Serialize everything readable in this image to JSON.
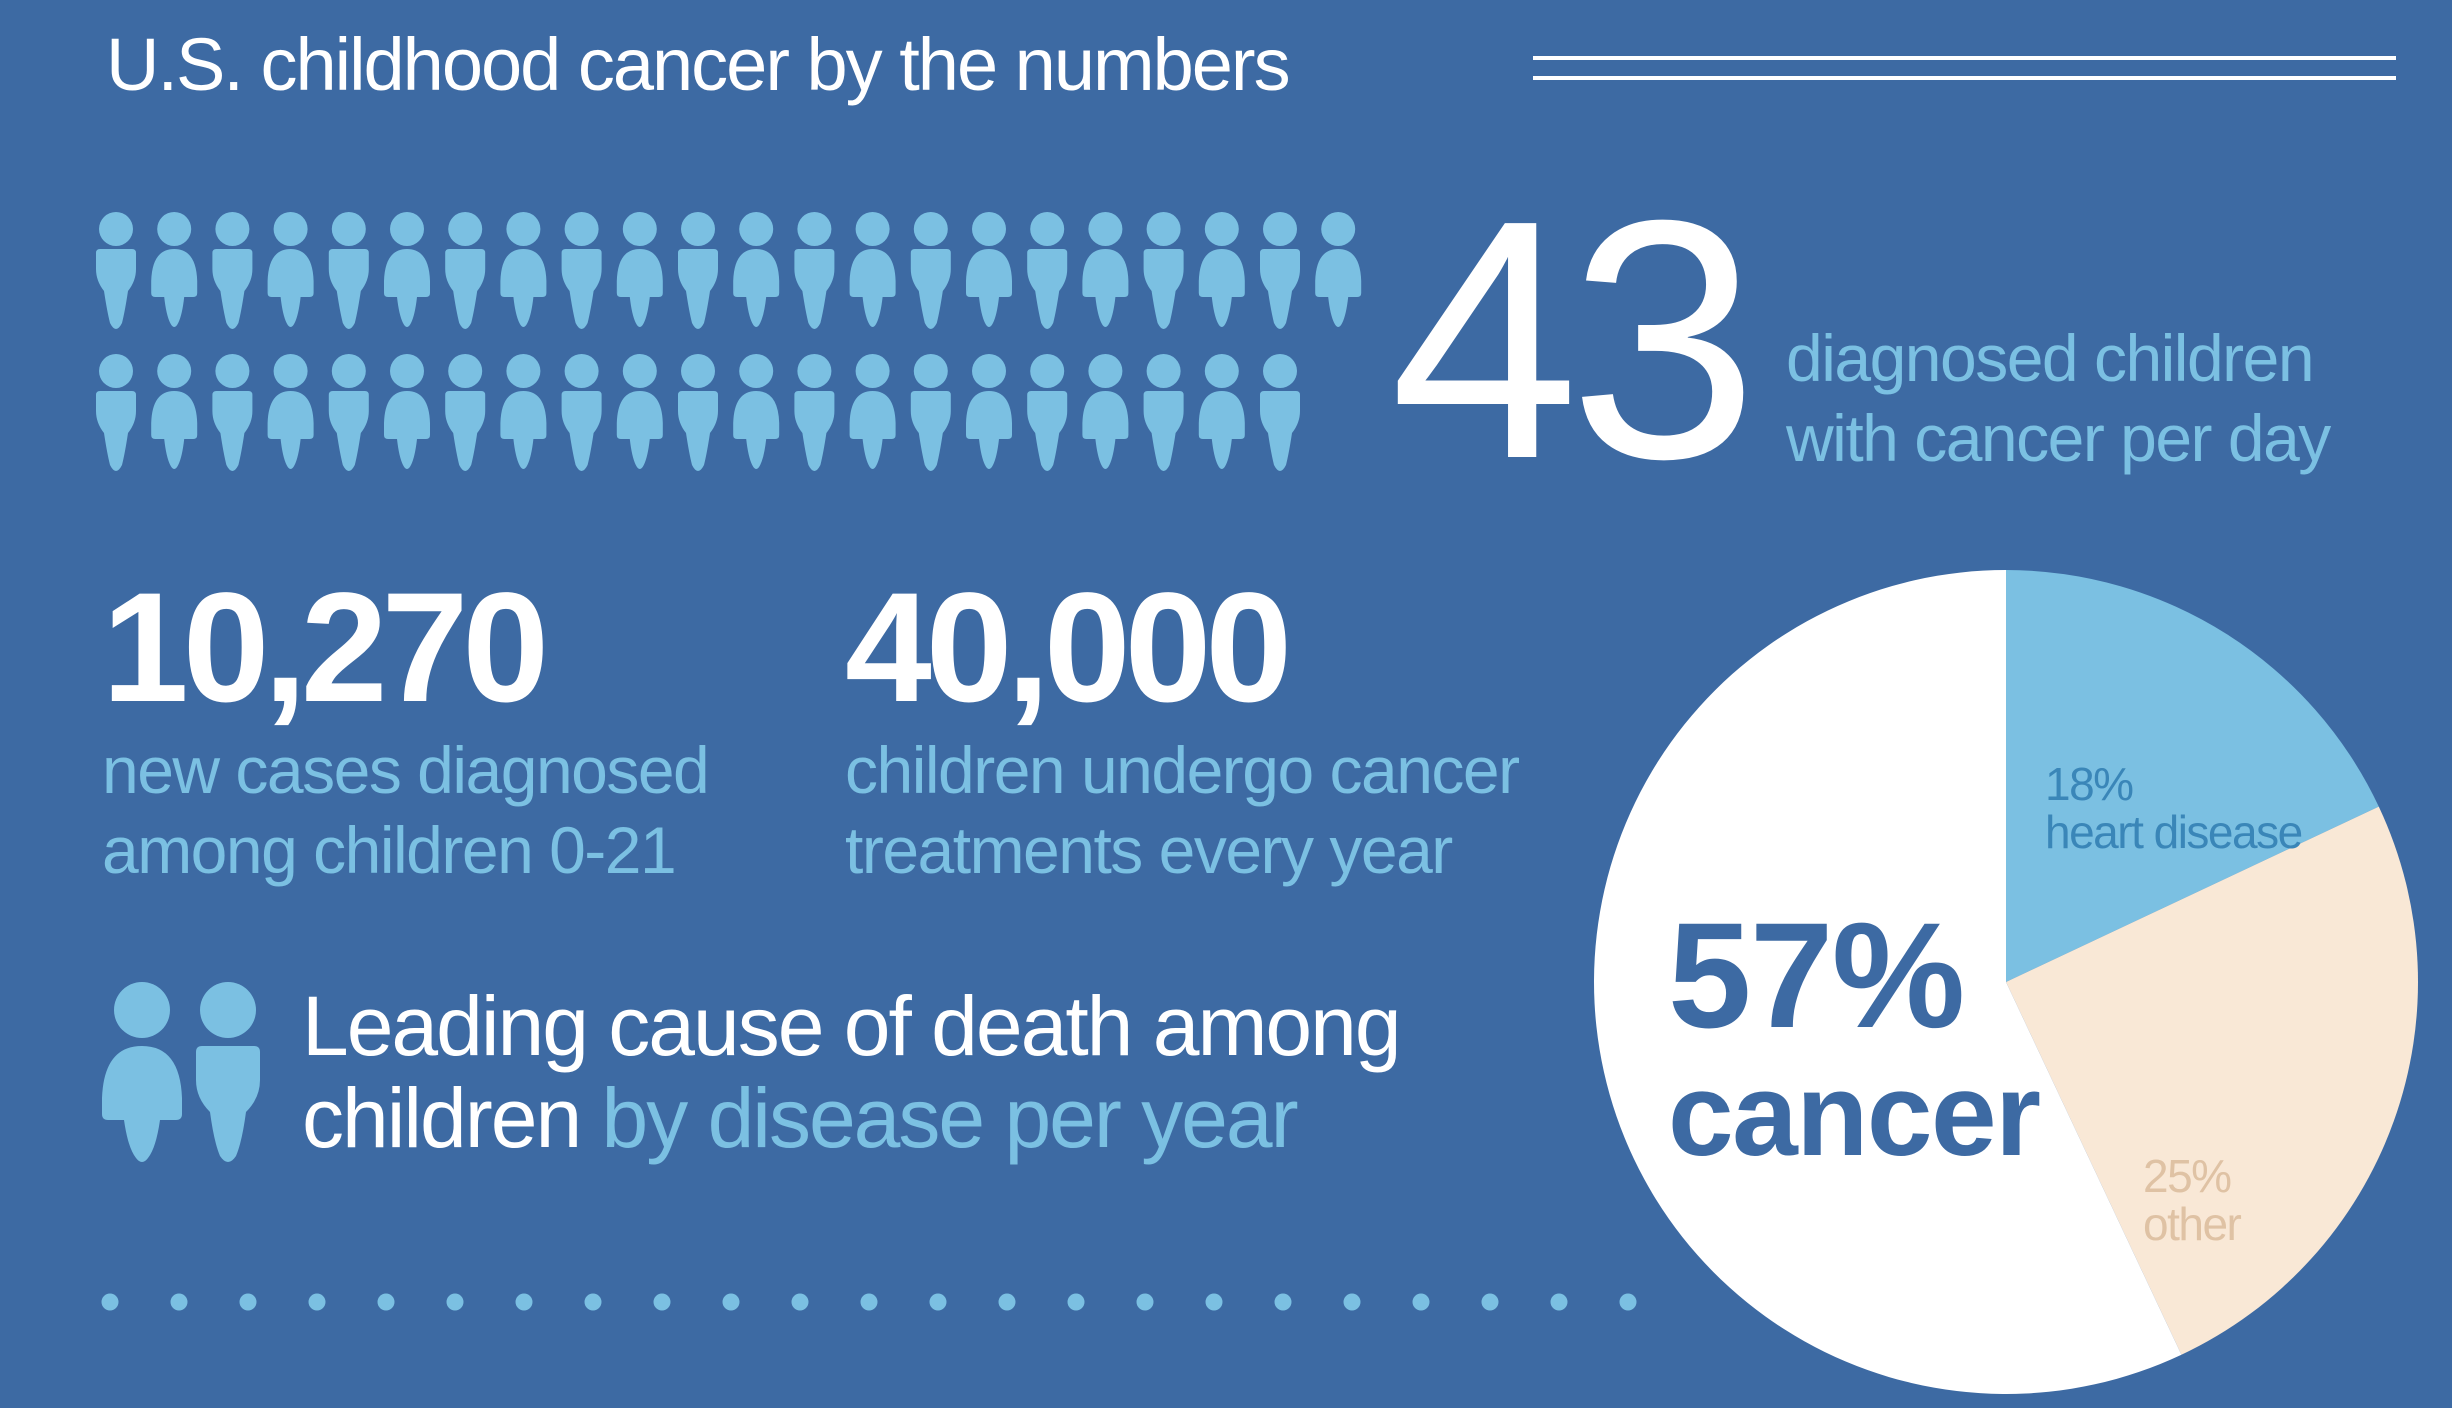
{
  "title": "U.S. childhood cancer by the numbers",
  "colors": {
    "background": "#3d6aa3",
    "accent_light": "#7bc0e2",
    "white": "#ffffff",
    "beige": "#f9e8d6",
    "heart_text": "#3a86b8",
    "other_text": "#dfc2a4"
  },
  "per_day": {
    "value": "43",
    "line1": "diagnosed children",
    "line2": "with cancer per day",
    "icon": "child-figure-icon",
    "figures_row1": 22,
    "figures_row2": 21
  },
  "stats": [
    {
      "value": "10,270",
      "line1": "new cases diagnosed",
      "line2": "among children 0-21"
    },
    {
      "value": "40,000",
      "line1": "children undergo cancer",
      "line2": "treatments every year"
    }
  ],
  "leading": {
    "line1": "Leading cause of death among",
    "line2_white": "children",
    "line2_highlight": "by disease per year"
  },
  "chart_data": {
    "type": "pie",
    "title": "",
    "slices": [
      {
        "label": "heart disease",
        "value": 18,
        "pct_text": "18%",
        "color": "#7bc0e2"
      },
      {
        "label": "other",
        "value": 25,
        "pct_text": "25%",
        "color": "#f9e8d6"
      },
      {
        "label": "cancer",
        "value": 57,
        "pct_text": "57%",
        "color": "#ffffff"
      }
    ],
    "start": "12 o'clock",
    "direction": "clockwise"
  }
}
